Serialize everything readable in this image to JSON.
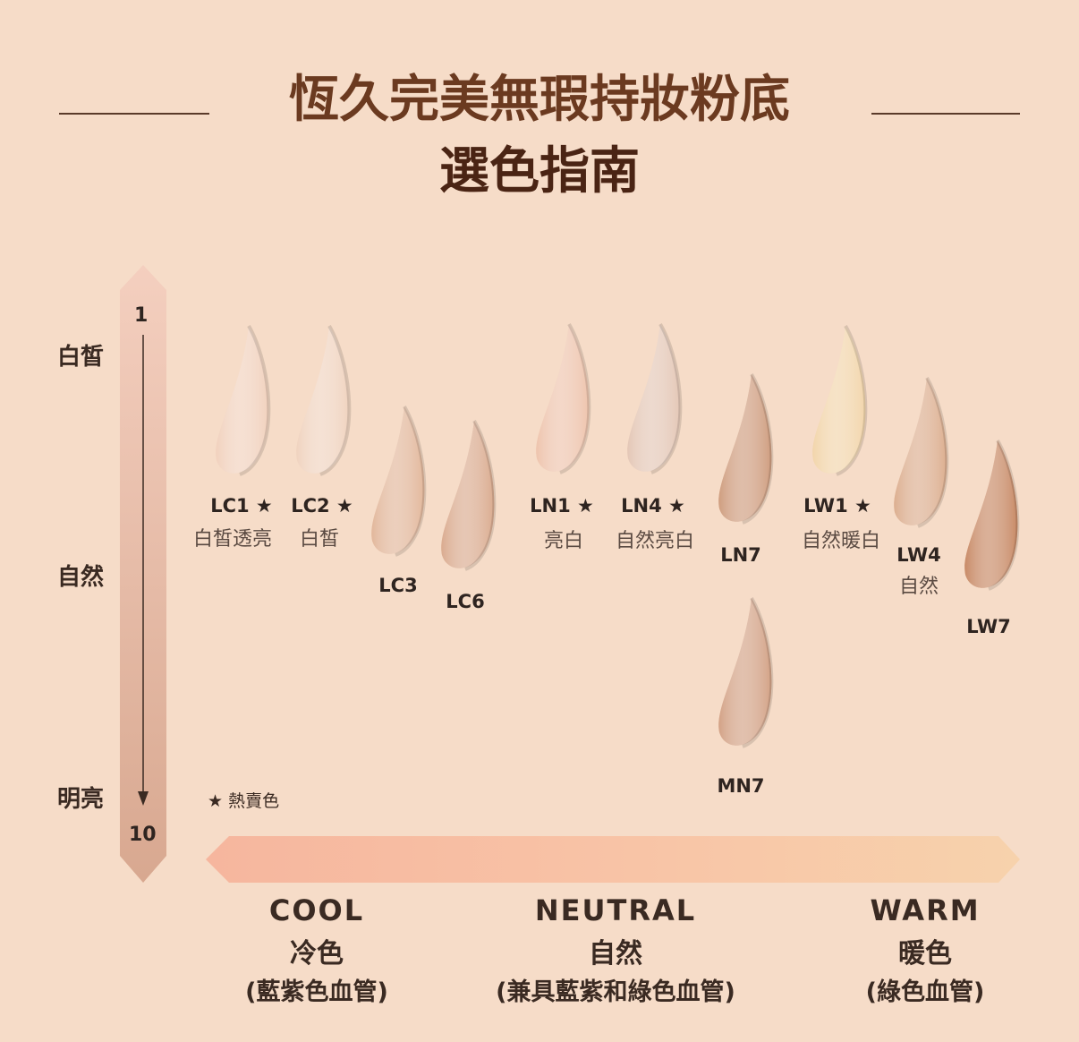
{
  "title": "恆久完美無瑕持妝粉底",
  "subtitle": "選色指南",
  "depth_scale": {
    "top_number": "1",
    "bottom_number": "10",
    "labels": [
      "白皙",
      "自然",
      "明亮"
    ]
  },
  "legend": {
    "star_label": "★ 熱賣色"
  },
  "shades": [
    {
      "code": "LC1 ★",
      "desc": "白皙透亮",
      "color": "#f1d1bd"
    },
    {
      "code": "LC2 ★",
      "desc": "白皙",
      "color": "#f0d3bf"
    },
    {
      "code": "LC3",
      "desc": "",
      "color": "#e2b79b"
    },
    {
      "code": "LC6",
      "desc": "",
      "color": "#daab8f"
    },
    {
      "code": "LN1 ★",
      "desc": "亮白",
      "color": "#eec4ad"
    },
    {
      "code": "LN4 ★",
      "desc": "自然亮白",
      "color": "#e4c7b6"
    },
    {
      "code": "LN7",
      "desc": "",
      "color": "#cf9d7f"
    },
    {
      "code": "MN7",
      "desc": "",
      "color": "#d3a286"
    },
    {
      "code": "LW1 ★",
      "desc": "自然暖白",
      "color": "#f2d5ab"
    },
    {
      "code": "LW4",
      "desc": "自然",
      "color": "#dcae8f"
    },
    {
      "code": "LW7",
      "desc": "",
      "color": "#c88a66"
    }
  ],
  "undertones": [
    {
      "en": "COOL",
      "zh": "冷色",
      "note": "(藍紫色血管)"
    },
    {
      "en": "NEUTRAL",
      "zh": "自然",
      "note": "(兼具藍紫和綠色血管)"
    },
    {
      "en": "WARM",
      "zh": "暖色",
      "note": "(綠色血管)"
    }
  ],
  "colors": {
    "title": "#6b3a20",
    "background": "#f6dcc8",
    "cool_end": "#f6b8a0",
    "warm_end": "#f7d0aa"
  }
}
